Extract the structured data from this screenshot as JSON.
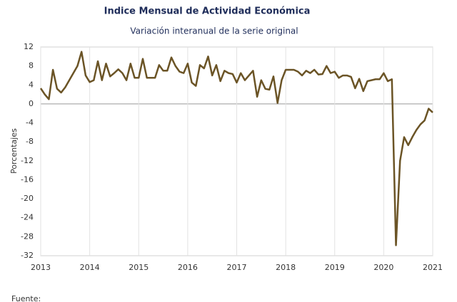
{
  "chart_data": {
    "type": "line",
    "title": "Indice Mensual de  Actividad Económica",
    "subtitle": "Variación interanual de la serie original",
    "y_label": "Porcentajes",
    "source": "Fuente:",
    "categories": [
      "2013",
      null,
      null,
      null,
      null,
      null,
      null,
      null,
      null,
      null,
      null,
      null,
      "2014",
      null,
      null,
      null,
      null,
      null,
      null,
      null,
      null,
      null,
      null,
      null,
      "2015",
      null,
      null,
      null,
      null,
      null,
      null,
      null,
      null,
      null,
      null,
      null,
      "2016",
      null,
      null,
      null,
      null,
      null,
      null,
      null,
      null,
      null,
      null,
      null,
      "2017",
      null,
      null,
      null,
      null,
      null,
      null,
      null,
      null,
      null,
      null,
      null,
      "2018",
      null,
      null,
      null,
      null,
      null,
      null,
      null,
      null,
      null,
      null,
      null,
      "2019",
      null,
      null,
      null,
      null,
      null,
      null,
      null,
      null,
      null,
      null,
      null,
      "2020",
      null,
      null,
      null,
      null,
      null,
      null,
      null,
      null,
      null,
      null,
      null,
      "2021"
    ],
    "series": [
      {
        "name": "Variación interanual",
        "color": "#6b5426",
        "values": [
          3.3,
          2.0,
          1.0,
          7.2,
          3.2,
          2.4,
          3.5,
          5.0,
          6.5,
          8.0,
          11.0,
          6.0,
          4.6,
          5.0,
          9.0,
          5.0,
          8.5,
          5.8,
          6.5,
          7.3,
          6.5,
          5.0,
          8.5,
          5.5,
          5.5,
          9.5,
          5.5,
          5.5,
          5.5,
          8.2,
          7.0,
          7.0,
          9.8,
          8.0,
          6.8,
          6.5,
          8.5,
          4.5,
          3.8,
          8.2,
          7.5,
          10.0,
          6.0,
          8.2,
          4.8,
          7.0,
          6.5,
          6.3,
          4.5,
          6.5,
          5.0,
          6.0,
          7.0,
          1.5,
          5.0,
          3.2,
          3.0,
          5.8,
          0.2,
          5.0,
          7.2,
          7.2,
          7.2,
          6.8,
          6.0,
          7.0,
          6.5,
          7.2,
          6.2,
          6.3,
          8.0,
          6.5,
          6.8,
          5.5,
          6.0,
          6.0,
          5.7,
          3.3,
          5.3,
          2.7,
          4.8,
          5.0,
          5.2,
          5.2,
          6.5,
          4.8,
          5.2,
          -29.8,
          -12.0,
          -7.0,
          -8.7,
          -7.0,
          -5.5,
          -4.3,
          -3.5,
          -1.0,
          -1.8
        ]
      }
    ],
    "ylim": [
      -32,
      12
    ],
    "yticks": [
      12,
      8,
      4,
      0,
      -4,
      -8,
      -12,
      -16,
      -20,
      -24,
      -28,
      -32
    ],
    "grid": true
  }
}
